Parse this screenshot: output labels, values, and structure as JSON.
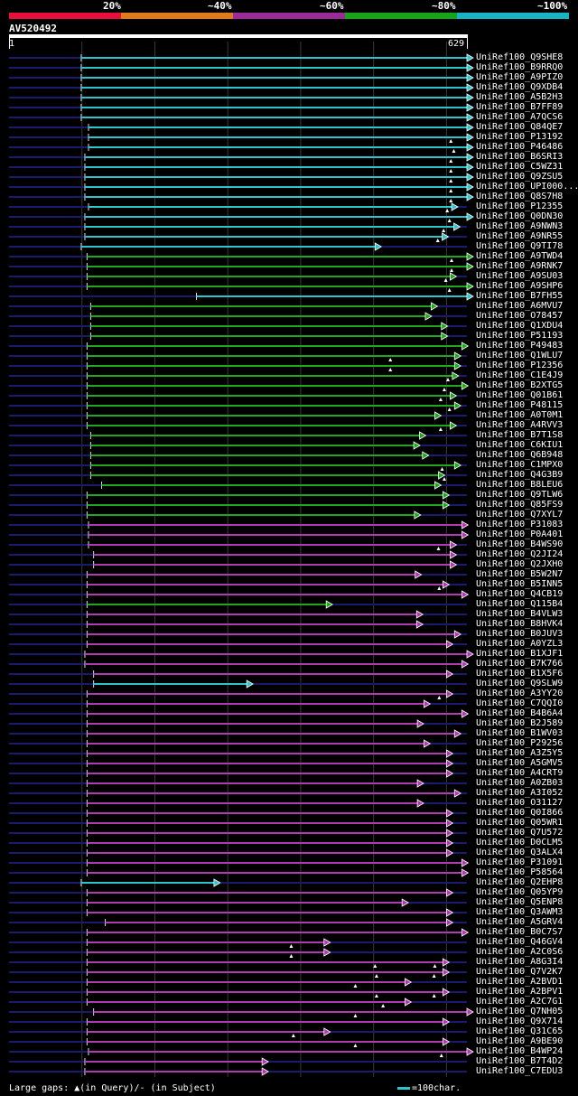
{
  "legend": {
    "segments": [
      {
        "label": "20%",
        "color": "#e8103a"
      },
      {
        "label": "~40%",
        "color": "#e07a1a"
      },
      {
        "label": "~60%",
        "color": "#9c2b9a"
      },
      {
        "label": "~80%",
        "color": "#16a41a"
      },
      {
        "label": "~100%",
        "color": "#18b4c4"
      }
    ]
  },
  "query": {
    "name": "AV520492",
    "start": "1",
    "end": "629"
  },
  "footer": {
    "gaps_label": "Large gaps: ▲(in Query)/- (in Subject)",
    "scale_label": "=100char."
  },
  "colors": {
    "cyan": "#2ec4cc",
    "green": "#1ea81e",
    "magenta": "#b03ab0",
    "navy": "#1a1a6e"
  },
  "chart_data": {
    "type": "alignment-diagram",
    "query_length": 629,
    "hits": [
      {
        "name": "UniRef100_Q9SHE8",
        "cls": "cyan",
        "start": 100,
        "end": 629,
        "tris": []
      },
      {
        "name": "UniRef100_B9RRQ0",
        "cls": "cyan",
        "start": 100,
        "end": 629,
        "tris": []
      },
      {
        "name": "UniRef100_A9PIZ0",
        "cls": "cyan",
        "start": 100,
        "end": 629,
        "tris": []
      },
      {
        "name": "UniRef100_Q9XDB4",
        "cls": "cyan",
        "start": 100,
        "end": 629,
        "tris": []
      },
      {
        "name": "UniRef100_A5B2H3",
        "cls": "cyan",
        "start": 100,
        "end": 629,
        "tris": []
      },
      {
        "name": "UniRef100_B7FF89",
        "cls": "cyan",
        "start": 100,
        "end": 629,
        "tris": []
      },
      {
        "name": "UniRef100_A7QCS6",
        "cls": "cyan",
        "start": 100,
        "end": 629,
        "tris": []
      },
      {
        "name": "UniRef100_Q84QE7",
        "cls": "cyan",
        "start": 110,
        "end": 629,
        "tris": []
      },
      {
        "name": "UniRef100_P13192",
        "cls": "cyan",
        "start": 110,
        "end": 629,
        "tris": [
          607
        ]
      },
      {
        "name": "UniRef100_P46486",
        "cls": "cyan",
        "start": 110,
        "end": 629,
        "tris": [
          611
        ]
      },
      {
        "name": "UniRef100_B6SRI3",
        "cls": "cyan",
        "start": 105,
        "end": 629,
        "tris": [
          607
        ]
      },
      {
        "name": "UniRef100_C5WZ31",
        "cls": "cyan",
        "start": 105,
        "end": 629,
        "tris": [
          607
        ]
      },
      {
        "name": "UniRef100_Q9ZSU5",
        "cls": "cyan",
        "start": 105,
        "end": 629,
        "tris": [
          607
        ]
      },
      {
        "name": "UniRef100_UPI000...",
        "cls": "cyan",
        "start": 105,
        "end": 629,
        "tris": [
          607
        ]
      },
      {
        "name": "UniRef100_Q8S7H8",
        "cls": "cyan",
        "start": 105,
        "end": 629,
        "tris": [
          607
        ]
      },
      {
        "name": "UniRef100_P12355",
        "cls": "cyan",
        "start": 110,
        "end": 608,
        "tris": [
          602
        ]
      },
      {
        "name": "UniRef100_Q0DN30",
        "cls": "cyan",
        "start": 105,
        "end": 629,
        "tris": [
          605
        ]
      },
      {
        "name": "UniRef100_A9NWN3",
        "cls": "cyan",
        "start": 105,
        "end": 611,
        "tris": [
          597
        ]
      },
      {
        "name": "UniRef100_A9NR55",
        "cls": "cyan",
        "start": 105,
        "end": 595,
        "tris": [
          589
        ]
      },
      {
        "name": "UniRef100_Q9TI78",
        "cls": "cyan",
        "start": 100,
        "end": 503,
        "tris": []
      },
      {
        "name": "UniRef100_A9TWD4",
        "cls": "green",
        "start": 108,
        "end": 629,
        "tris": [
          608
        ]
      },
      {
        "name": "UniRef100_A9RNK7",
        "cls": "green",
        "start": 108,
        "end": 629,
        "tris": [
          608
        ]
      },
      {
        "name": "UniRef100_A9SU03",
        "cls": "green",
        "start": 108,
        "end": 606,
        "tris": [
          600
        ]
      },
      {
        "name": "UniRef100_A9SHP6",
        "cls": "green",
        "start": 108,
        "end": 629,
        "tris": [
          605
        ]
      },
      {
        "name": "UniRef100_B7FH55",
        "cls": "cyan",
        "start": 258,
        "end": 629,
        "tris": []
      },
      {
        "name": "UniRef100_A6MVU7",
        "cls": "green",
        "start": 113,
        "end": 580,
        "tris": []
      },
      {
        "name": "UniRef100_O78457",
        "cls": "green",
        "start": 113,
        "end": 572,
        "tris": []
      },
      {
        "name": "UniRef100_Q1XDU4",
        "cls": "green",
        "start": 113,
        "end": 594,
        "tris": []
      },
      {
        "name": "UniRef100_P51193",
        "cls": "green",
        "start": 113,
        "end": 594,
        "tris": []
      },
      {
        "name": "UniRef100_P49483",
        "cls": "green",
        "start": 108,
        "end": 622,
        "tris": []
      },
      {
        "name": "UniRef100_Q1WLU7",
        "cls": "green",
        "start": 108,
        "end": 612,
        "tris": [
          524
        ]
      },
      {
        "name": "UniRef100_P12356",
        "cls": "green",
        "start": 108,
        "end": 612,
        "tris": [
          524
        ]
      },
      {
        "name": "UniRef100_C1E4J9",
        "cls": "green",
        "start": 108,
        "end": 609,
        "tris": [
          603
        ]
      },
      {
        "name": "UniRef100_B2XTG5",
        "cls": "green",
        "start": 108,
        "end": 622,
        "tris": [
          598
        ]
      },
      {
        "name": "UniRef100_Q01B61",
        "cls": "green",
        "start": 108,
        "end": 606,
        "tris": [
          593
        ]
      },
      {
        "name": "UniRef100_P48115",
        "cls": "green",
        "start": 108,
        "end": 612,
        "tris": [
          605
        ]
      },
      {
        "name": "UniRef100_A0T0M1",
        "cls": "green",
        "start": 108,
        "end": 585,
        "tris": []
      },
      {
        "name": "UniRef100_A4RVV3",
        "cls": "green",
        "start": 108,
        "end": 606,
        "tris": [
          593
        ]
      },
      {
        "name": "UniRef100_B7T1S8",
        "cls": "green",
        "start": 113,
        "end": 564,
        "tris": []
      },
      {
        "name": "UniRef100_C6KIU1",
        "cls": "green",
        "start": 113,
        "end": 556,
        "tris": []
      },
      {
        "name": "UniRef100_Q6B948",
        "cls": "green",
        "start": 113,
        "end": 568,
        "tris": []
      },
      {
        "name": "UniRef100_C1MPX0",
        "cls": "green",
        "start": 113,
        "end": 612,
        "tris": [
          595
        ]
      },
      {
        "name": "UniRef100_Q4G3B9",
        "cls": "green",
        "start": 113,
        "end": 590,
        "tris": [
          598
        ]
      },
      {
        "name": "UniRef100_B8LEU6",
        "cls": "green",
        "start": 128,
        "end": 585,
        "tris": []
      },
      {
        "name": "UniRef100_Q9TLW6",
        "cls": "green",
        "start": 108,
        "end": 596,
        "tris": []
      },
      {
        "name": "UniRef100_Q85FS9",
        "cls": "green",
        "start": 108,
        "end": 596,
        "tris": []
      },
      {
        "name": "UniRef100_Q7XYL7",
        "cls": "green",
        "start": 108,
        "end": 557,
        "tris": []
      },
      {
        "name": "UniRef100_P31083",
        "cls": "magenta",
        "start": 110,
        "end": 622,
        "tris": []
      },
      {
        "name": "UniRef100_P0A401",
        "cls": "magenta",
        "start": 110,
        "end": 622,
        "tris": []
      },
      {
        "name": "UniRef100_B4WS90",
        "cls": "magenta",
        "start": 110,
        "end": 606,
        "tris": [
          590
        ]
      },
      {
        "name": "UniRef100_Q2JI24",
        "cls": "magenta",
        "start": 117,
        "end": 606,
        "tris": []
      },
      {
        "name": "UniRef100_Q2JXH0",
        "cls": "magenta",
        "start": 117,
        "end": 606,
        "tris": []
      },
      {
        "name": "UniRef100_B5W2N7",
        "cls": "magenta",
        "start": 108,
        "end": 558,
        "tris": []
      },
      {
        "name": "UniRef100_B5INN5",
        "cls": "magenta",
        "start": 108,
        "end": 596,
        "tris": [
          591
        ]
      },
      {
        "name": "UniRef100_Q4CB19",
        "cls": "magenta",
        "start": 108,
        "end": 622,
        "tris": []
      },
      {
        "name": "UniRef100_Q115B4",
        "cls": "green",
        "start": 108,
        "end": 436,
        "tris": []
      },
      {
        "name": "UniRef100_B4VLW3",
        "cls": "magenta",
        "start": 108,
        "end": 560,
        "tris": []
      },
      {
        "name": "UniRef100_B8HVK4",
        "cls": "magenta",
        "start": 108,
        "end": 560,
        "tris": []
      },
      {
        "name": "UniRef100_B0JUV3",
        "cls": "magenta",
        "start": 108,
        "end": 612,
        "tris": []
      },
      {
        "name": "UniRef100_A0YZL3",
        "cls": "magenta",
        "start": 108,
        "end": 601,
        "tris": []
      },
      {
        "name": "UniRef100_B1XJF1",
        "cls": "magenta",
        "start": 105,
        "end": 629,
        "tris": []
      },
      {
        "name": "UniRef100_B7K766",
        "cls": "magenta",
        "start": 105,
        "end": 622,
        "tris": []
      },
      {
        "name": "UniRef100_B1X5F6",
        "cls": "magenta",
        "start": 117,
        "end": 601,
        "tris": []
      },
      {
        "name": "UniRef100_Q9SLW9",
        "cls": "cyan",
        "start": 117,
        "end": 327,
        "tris": []
      },
      {
        "name": "UniRef100_A3YY20",
        "cls": "magenta",
        "start": 108,
        "end": 601,
        "tris": [
          591
        ]
      },
      {
        "name": "UniRef100_C7QQI0",
        "cls": "magenta",
        "start": 108,
        "end": 570,
        "tris": []
      },
      {
        "name": "UniRef100_B4B6A4",
        "cls": "magenta",
        "start": 108,
        "end": 622,
        "tris": []
      },
      {
        "name": "UniRef100_B2J589",
        "cls": "magenta",
        "start": 108,
        "end": 561,
        "tris": []
      },
      {
        "name": "UniRef100_B1WV03",
        "cls": "magenta",
        "start": 108,
        "end": 612,
        "tris": []
      },
      {
        "name": "UniRef100_P29256",
        "cls": "magenta",
        "start": 108,
        "end": 570,
        "tris": []
      },
      {
        "name": "UniRef100_A3Z5Y5",
        "cls": "magenta",
        "start": 108,
        "end": 601,
        "tris": []
      },
      {
        "name": "UniRef100_A5GMV5",
        "cls": "magenta",
        "start": 108,
        "end": 601,
        "tris": []
      },
      {
        "name": "UniRef100_A4CRT9",
        "cls": "magenta",
        "start": 108,
        "end": 601,
        "tris": []
      },
      {
        "name": "UniRef100_A0ZB03",
        "cls": "magenta",
        "start": 108,
        "end": 561,
        "tris": []
      },
      {
        "name": "UniRef100_A3I052",
        "cls": "magenta",
        "start": 108,
        "end": 612,
        "tris": []
      },
      {
        "name": "UniRef100_O31127",
        "cls": "magenta",
        "start": 108,
        "end": 561,
        "tris": []
      },
      {
        "name": "UniRef100_Q0I866",
        "cls": "magenta",
        "start": 108,
        "end": 601,
        "tris": []
      },
      {
        "name": "UniRef100_Q05WR1",
        "cls": "magenta",
        "start": 108,
        "end": 601,
        "tris": []
      },
      {
        "name": "UniRef100_Q7U572",
        "cls": "magenta",
        "start": 108,
        "end": 601,
        "tris": []
      },
      {
        "name": "UniRef100_D0CLM5",
        "cls": "magenta",
        "start": 108,
        "end": 601,
        "tris": []
      },
      {
        "name": "UniRef100_Q3ALX4",
        "cls": "magenta",
        "start": 108,
        "end": 601,
        "tris": []
      },
      {
        "name": "UniRef100_P31091",
        "cls": "magenta",
        "start": 108,
        "end": 622,
        "tris": []
      },
      {
        "name": "UniRef100_P58564",
        "cls": "magenta",
        "start": 108,
        "end": 622,
        "tris": []
      },
      {
        "name": "UniRef100_Q2EHP8",
        "cls": "cyan",
        "start": 100,
        "end": 282,
        "tris": []
      },
      {
        "name": "UniRef100_Q05YP9",
        "cls": "magenta",
        "start": 108,
        "end": 601,
        "tris": []
      },
      {
        "name": "UniRef100_Q5ENP8",
        "cls": "magenta",
        "start": 108,
        "end": 540,
        "tris": []
      },
      {
        "name": "UniRef100_Q3AWM3",
        "cls": "magenta",
        "start": 108,
        "end": 601,
        "tris": []
      },
      {
        "name": "UniRef100_A5GRV4",
        "cls": "magenta",
        "start": 133,
        "end": 601,
        "tris": []
      },
      {
        "name": "UniRef100_B0C7S7",
        "cls": "magenta",
        "start": 108,
        "end": 622,
        "tris": []
      },
      {
        "name": "UniRef100_Q46GV4",
        "cls": "magenta",
        "start": 108,
        "end": 433,
        "tris": [
          388
        ]
      },
      {
        "name": "UniRef100_A2C0S6",
        "cls": "magenta",
        "start": 108,
        "end": 433,
        "tris": [
          388
        ]
      },
      {
        "name": "UniRef100_A8G3I4",
        "cls": "magenta",
        "start": 108,
        "end": 596,
        "tris": [
          503,
          585
        ]
      },
      {
        "name": "UniRef100_Q7V2K7",
        "cls": "magenta",
        "start": 108,
        "end": 596,
        "tris": [
          505,
          584
        ]
      },
      {
        "name": "UniRef100_A2BVD1",
        "cls": "magenta",
        "start": 108,
        "end": 544,
        "tris": [
          476
        ]
      },
      {
        "name": "UniRef100_A2BPV1",
        "cls": "magenta",
        "start": 108,
        "end": 596,
        "tris": [
          505,
          584
        ]
      },
      {
        "name": "UniRef100_A2C7G1",
        "cls": "magenta",
        "start": 108,
        "end": 544,
        "tris": [
          514
        ]
      },
      {
        "name": "UniRef100_Q7NH05",
        "cls": "magenta",
        "start": 117,
        "end": 629,
        "tris": [
          476
        ]
      },
      {
        "name": "UniRef100_Q9X714",
        "cls": "magenta",
        "start": 108,
        "end": 596,
        "tris": []
      },
      {
        "name": "UniRef100_Q31C65",
        "cls": "magenta",
        "start": 108,
        "end": 433,
        "tris": [
          391
        ]
      },
      {
        "name": "UniRef100_A9BE90",
        "cls": "magenta",
        "start": 108,
        "end": 596,
        "tris": [
          476
        ]
      },
      {
        "name": "UniRef100_B4WP24",
        "cls": "magenta",
        "start": 110,
        "end": 629,
        "tris": [
          594
        ]
      },
      {
        "name": "UniRef100_B7T4D2",
        "cls": "magenta",
        "start": 105,
        "end": 348,
        "tris": []
      },
      {
        "name": "UniRef100_C7EDU3",
        "cls": "magenta",
        "start": 105,
        "end": 348,
        "tris": []
      }
    ]
  }
}
